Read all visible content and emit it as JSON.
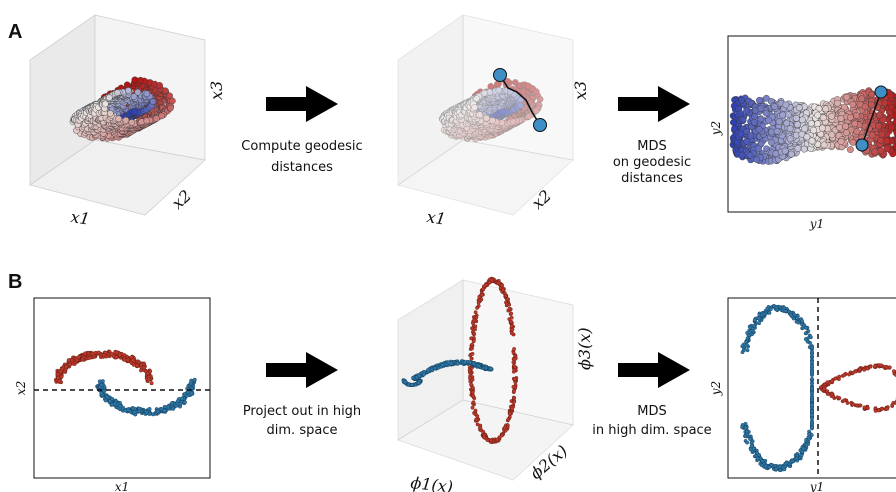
{
  "panels": {
    "A": {
      "letter": "A",
      "plot1": {
        "xlabel": "x1",
        "ylabel": "x2",
        "zlabel": "x3"
      },
      "step1": {
        "line1": "Compute geodesic",
        "line2": "distances"
      },
      "plot2": {
        "xlabel": "x1",
        "ylabel": "x2",
        "zlabel": "x3"
      },
      "step2": {
        "line1": "MDS",
        "line2": "on geodesic",
        "line3": "distances"
      },
      "plot3": {
        "xlabel": "y1",
        "ylabel": "y2"
      }
    },
    "B": {
      "letter": "B",
      "plot1": {
        "xlabel": "x1",
        "ylabel": "x2"
      },
      "step1": {
        "line1": "Project out in high",
        "line2": "dim. space"
      },
      "plot2": {
        "xlabel": "ϕ1(x)",
        "ylabel": "ϕ2(x)",
        "zlabel": "ϕ3(x)"
      },
      "step2": {
        "line1": "MDS",
        "line2": "in high dim. space"
      },
      "plot3": {
        "xlabel": "y1",
        "ylabel": "y2"
      }
    }
  },
  "colors": {
    "red": "#c0392b",
    "blue": "#2e78a8",
    "swiss_low": "#2e3fb0",
    "swiss_mid": "#e9e4e0",
    "swiss_high": "#b01515",
    "landmark": "#3d8fc6"
  }
}
